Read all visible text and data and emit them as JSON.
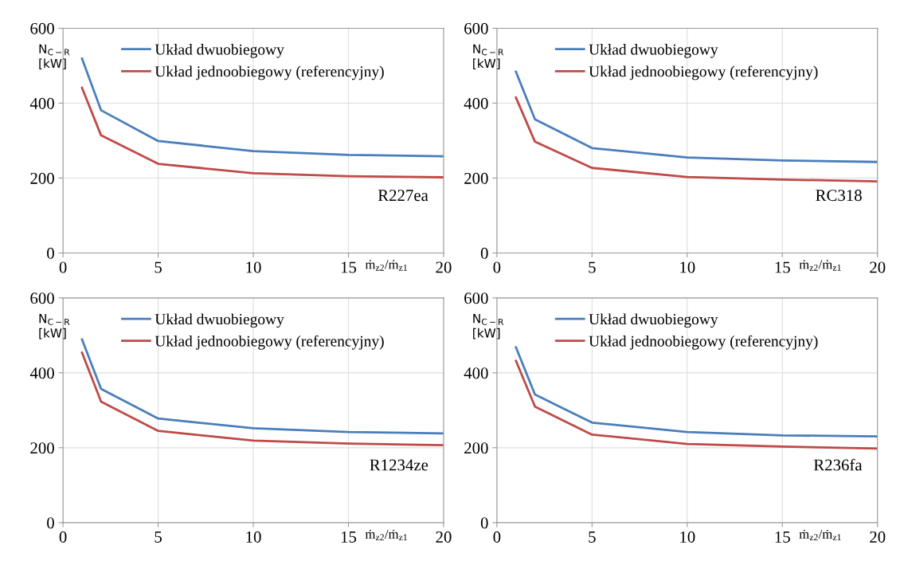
{
  "chart_data": [
    {
      "type": "line",
      "xlabel": "ṁ$_{z2}$/ṁ$_{z1}$",
      "ylabel": "N$_{C−R}$\n[kW]",
      "annotations": [
        "R227ea"
      ],
      "x": [
        1,
        2,
        5,
        10,
        15,
        20
      ],
      "xlim": [
        0,
        20
      ],
      "xticks": [
        0,
        5,
        10,
        15,
        20
      ],
      "ylim": [
        0,
        600
      ],
      "yticks": [
        0,
        200,
        400,
        600
      ],
      "grid": true,
      "legend": "top",
      "series": [
        {
          "name": "Układ dwuobiegowy",
          "color": "#4a7ebb",
          "values": [
            519,
            381,
            299,
            272,
            262,
            258
          ]
        },
        {
          "name": "Układ jednoobiegowy (referencyjny)",
          "color": "#be4b48",
          "values": [
            441,
            314,
            238,
            213,
            205,
            202
          ]
        }
      ]
    },
    {
      "type": "line",
      "xlabel": "ṁ$_{z2}$/ṁ$_{z1}$",
      "ylabel": "N$_{C−R}$\n[kW]",
      "annotations": [
        "RC318"
      ],
      "x": [
        1,
        2,
        5,
        10,
        15,
        20
      ],
      "xlim": [
        0,
        20
      ],
      "xticks": [
        0,
        5,
        10,
        15,
        20
      ],
      "ylim": [
        0,
        600
      ],
      "yticks": [
        0,
        200,
        400,
        600
      ],
      "grid": true,
      "legend": "top",
      "series": [
        {
          "name": "Układ dwuobiegowy",
          "color": "#4a7ebb",
          "values": [
            484,
            357,
            280,
            255,
            247,
            243
          ]
        },
        {
          "name": "Układ jednoobiegowy (referencyjny)",
          "color": "#be4b48",
          "values": [
            415,
            297,
            227,
            203,
            196,
            191
          ]
        }
      ]
    },
    {
      "type": "line",
      "xlabel": "ṁ$_{z2}$/ṁ$_{z1}$",
      "ylabel": "N$_{C−R}$\n[kW]",
      "annotations": [
        "R1234ze"
      ],
      "x": [
        1,
        2,
        5,
        10,
        15,
        20
      ],
      "xlim": [
        0,
        20
      ],
      "xticks": [
        0,
        5,
        10,
        15,
        20
      ],
      "ylim": [
        0,
        600
      ],
      "yticks": [
        0,
        200,
        400,
        600
      ],
      "grid": true,
      "legend": "top",
      "series": [
        {
          "name": "Układ dwuobiegowy",
          "color": "#4a7ebb",
          "values": [
            489,
            357,
            278,
            252,
            242,
            238
          ]
        },
        {
          "name": "Układ jednoobiegowy (referencyjny)",
          "color": "#be4b48",
          "values": [
            454,
            323,
            245,
            219,
            211,
            207
          ]
        }
      ]
    },
    {
      "type": "line",
      "xlabel": "ṁ$_{z2}$/ṁ$_{z1}$",
      "ylabel": "N$_{C−R}$\n[kW]",
      "annotations": [
        "R236fa"
      ],
      "x": [
        1,
        2,
        5,
        10,
        15,
        20
      ],
      "xlim": [
        0,
        20
      ],
      "xticks": [
        0,
        5,
        10,
        15,
        20
      ],
      "ylim": [
        0,
        600
      ],
      "yticks": [
        0,
        200,
        400,
        600
      ],
      "grid": true,
      "legend": "top",
      "series": [
        {
          "name": "Układ dwuobiegowy",
          "color": "#4a7ebb",
          "values": [
            468,
            342,
            267,
            242,
            233,
            230
          ]
        },
        {
          "name": "Układ jednoobiegowy (referencyjny)",
          "color": "#be4b48",
          "values": [
            432,
            310,
            235,
            210,
            203,
            198
          ]
        }
      ]
    }
  ]
}
